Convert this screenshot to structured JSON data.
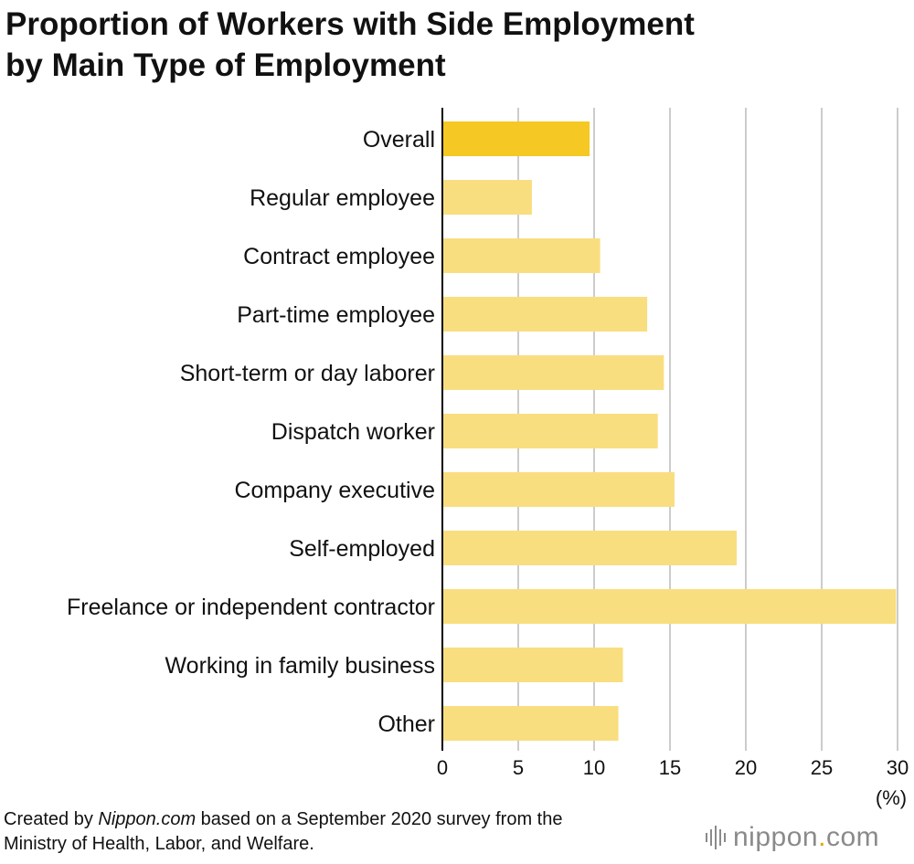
{
  "title_line1": "Proportion of Workers with Side Employment",
  "title_line2": "by Main Type of Employment",
  "footer": {
    "prefix": "Created by ",
    "brand": "Nippon.com",
    "line1_rest": " based on a September 2020 survey from the",
    "line2": "Ministry of Health, Labor, and Welfare."
  },
  "logo": {
    "name": "nippon",
    "dot": ".",
    "tld": "com"
  },
  "colors": {
    "highlight": "#F5C823",
    "bar": "#F9DE80",
    "grid": "#cccccc",
    "axis": "#000000"
  },
  "chart_data": {
    "type": "bar",
    "orientation": "horizontal",
    "categories": [
      "Overall",
      "Regular employee",
      "Contract employee",
      "Part-time employee",
      "Short-term or day laborer",
      "Dispatch worker",
      "Company executive",
      "Self-employed",
      "Freelance or independent contractor",
      "Working in family business",
      "Other"
    ],
    "values": [
      9.7,
      5.9,
      10.4,
      13.5,
      14.6,
      14.2,
      15.3,
      19.4,
      29.9,
      11.9,
      11.6
    ],
    "highlight_index": 0,
    "xlim": [
      0,
      30
    ],
    "xticks": [
      0,
      5,
      10,
      15,
      20,
      25,
      30
    ],
    "unit": "(%)",
    "grid": true
  }
}
